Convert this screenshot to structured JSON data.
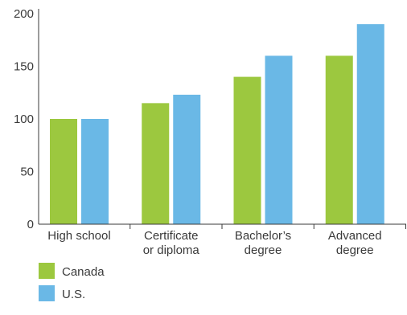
{
  "chart_data": {
    "type": "bar",
    "title": "",
    "xlabel": "",
    "ylabel": "",
    "categories": [
      [
        "High school"
      ],
      [
        "Certificate",
        "or diploma"
      ],
      [
        "Bachelor’s",
        "degree"
      ],
      [
        "Advanced",
        "degree"
      ]
    ],
    "series": [
      {
        "name": "Canada",
        "color": "#9cc83f",
        "values": [
          100,
          115,
          140,
          160
        ]
      },
      {
        "name": "U.S.",
        "color": "#6ab8e6",
        "values": [
          100,
          123,
          160,
          190
        ]
      }
    ],
    "ylim": [
      0,
      200
    ],
    "yticks": [
      0,
      50,
      100,
      150,
      200
    ],
    "grid": false,
    "legend_position": "bottom-left",
    "colors": {
      "axis": "#3a3a3a",
      "text": "#3a3a3a"
    }
  }
}
